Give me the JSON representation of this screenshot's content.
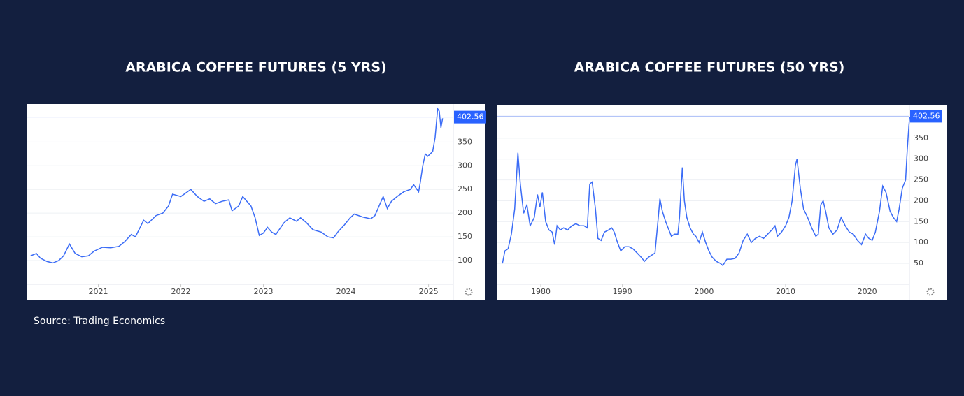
{
  "chart_data": [
    {
      "type": "line",
      "title": "ARABICA COFFEE FUTURES (5 YRS)",
      "xlim": [
        2020.14,
        2025.3
      ],
      "xticks": [
        2021,
        2022,
        2023,
        2024,
        2025
      ],
      "ylim": [
        50,
        430
      ],
      "yticks": [
        100,
        150,
        200,
        250,
        300,
        350
      ],
      "grid": true,
      "last_value": 402.56,
      "x": [
        2020.18,
        2020.25,
        2020.3,
        2020.38,
        2020.45,
        2020.52,
        2020.58,
        2020.65,
        2020.72,
        2020.8,
        2020.88,
        2020.95,
        2021.05,
        2021.15,
        2021.25,
        2021.32,
        2021.4,
        2021.45,
        2021.55,
        2021.6,
        2021.7,
        2021.78,
        2021.85,
        2021.9,
        2022.0,
        2022.08,
        2022.12,
        2022.2,
        2022.28,
        2022.35,
        2022.42,
        2022.5,
        2022.58,
        2022.62,
        2022.7,
        2022.75,
        2022.8,
        2022.85,
        2022.9,
        2022.95,
        2023.0,
        2023.05,
        2023.1,
        2023.15,
        2023.25,
        2023.32,
        2023.4,
        2023.45,
        2023.52,
        2023.6,
        2023.7,
        2023.78,
        2023.85,
        2023.9,
        2023.98,
        2024.05,
        2024.1,
        2024.2,
        2024.3,
        2024.35,
        2024.4,
        2024.45,
        2024.5,
        2024.55,
        2024.62,
        2024.7,
        2024.78,
        2024.82,
        2024.88,
        2024.9,
        2024.93,
        2024.96,
        2024.99,
        2025.02,
        2025.05,
        2025.08,
        2025.11,
        2025.13,
        2025.15,
        2025.17
      ],
      "series": [
        {
          "color": "#3b6cf6",
          "values": [
            110,
            115,
            105,
            98,
            95,
            100,
            110,
            135,
            115,
            108,
            110,
            120,
            128,
            127,
            130,
            140,
            155,
            150,
            185,
            178,
            195,
            200,
            215,
            240,
            235,
            245,
            250,
            235,
            225,
            230,
            220,
            225,
            228,
            205,
            215,
            235,
            225,
            215,
            190,
            153,
            158,
            170,
            160,
            155,
            180,
            190,
            183,
            190,
            180,
            165,
            160,
            150,
            148,
            160,
            175,
            190,
            198,
            192,
            188,
            195,
            215,
            235,
            210,
            225,
            235,
            245,
            250,
            260,
            245,
            265,
            300,
            325,
            320,
            325,
            330,
            360,
            420,
            415,
            380,
            400
          ]
        }
      ]
    },
    {
      "type": "line",
      "title": "ARABICA COFFEE FUTURES (50 YRS)",
      "xlim": [
        1974.6,
        2025.6
      ],
      "xticks": [
        1980,
        1990,
        2000,
        2010,
        2020
      ],
      "ylim": [
        0,
        430
      ],
      "yticks": [
        50,
        100,
        150,
        200,
        250,
        300,
        350
      ],
      "grid": true,
      "last_value": 402.56,
      "x": [
        1975.3,
        1975.6,
        1976.0,
        1976.4,
        1976.8,
        1977.2,
        1977.5,
        1977.9,
        1978.3,
        1978.7,
        1979.2,
        1979.6,
        1979.9,
        1980.2,
        1980.6,
        1981.0,
        1981.4,
        1981.7,
        1982.0,
        1982.4,
        1982.8,
        1983.3,
        1983.8,
        1984.3,
        1984.8,
        1985.3,
        1985.7,
        1986.0,
        1986.3,
        1986.7,
        1987.0,
        1987.4,
        1987.8,
        1988.3,
        1988.7,
        1989.0,
        1989.4,
        1989.8,
        1990.3,
        1990.8,
        1991.3,
        1991.8,
        1992.3,
        1992.7,
        1993.2,
        1993.6,
        1994.0,
        1994.4,
        1994.6,
        1994.9,
        1995.3,
        1995.7,
        1996.0,
        1996.4,
        1996.8,
        1997.0,
        1997.35,
        1997.6,
        1997.9,
        1998.3,
        1998.7,
        1999.0,
        1999.4,
        1999.8,
        2000.2,
        2000.6,
        2001.0,
        2001.5,
        2002.0,
        2002.3,
        2002.8,
        2003.3,
        2003.8,
        2004.3,
        2004.8,
        2005.3,
        2005.8,
        2006.3,
        2006.8,
        2007.3,
        2007.8,
        2008.3,
        2008.7,
        2009.0,
        2009.5,
        2010.0,
        2010.4,
        2010.8,
        2011.2,
        2011.4,
        2011.8,
        2012.2,
        2012.7,
        2013.2,
        2013.7,
        2014.0,
        2014.3,
        2014.6,
        2014.9,
        2015.3,
        2015.8,
        2016.3,
        2016.8,
        2017.3,
        2017.8,
        2018.3,
        2018.8,
        2019.3,
        2019.8,
        2020.2,
        2020.6,
        2021.0,
        2021.5,
        2021.9,
        2022.3,
        2022.8,
        2023.2,
        2023.6,
        2023.9,
        2024.3,
        2024.7,
        2024.9,
        2025.1,
        2025.2
      ],
      "series": [
        {
          "color": "#3b6cf6",
          "values": [
            50,
            80,
            85,
            120,
            180,
            315,
            240,
            170,
            190,
            140,
            160,
            215,
            185,
            220,
            150,
            130,
            125,
            95,
            140,
            130,
            135,
            130,
            140,
            145,
            140,
            140,
            135,
            240,
            245,
            180,
            110,
            105,
            125,
            130,
            135,
            125,
            100,
            80,
            90,
            90,
            85,
            75,
            65,
            55,
            65,
            70,
            75,
            160,
            205,
            175,
            150,
            130,
            115,
            120,
            120,
            160,
            280,
            200,
            160,
            135,
            120,
            115,
            100,
            125,
            100,
            80,
            65,
            55,
            50,
            45,
            60,
            60,
            62,
            75,
            105,
            120,
            100,
            110,
            115,
            110,
            120,
            130,
            140,
            115,
            125,
            140,
            160,
            200,
            285,
            300,
            230,
            180,
            160,
            135,
            115,
            120,
            190,
            200,
            175,
            135,
            120,
            130,
            160,
            140,
            125,
            120,
            105,
            95,
            120,
            110,
            105,
            125,
            175,
            235,
            220,
            175,
            160,
            150,
            180,
            230,
            250,
            320,
            380,
            400
          ]
        }
      ]
    }
  ],
  "source": "Source: Trading Economics"
}
